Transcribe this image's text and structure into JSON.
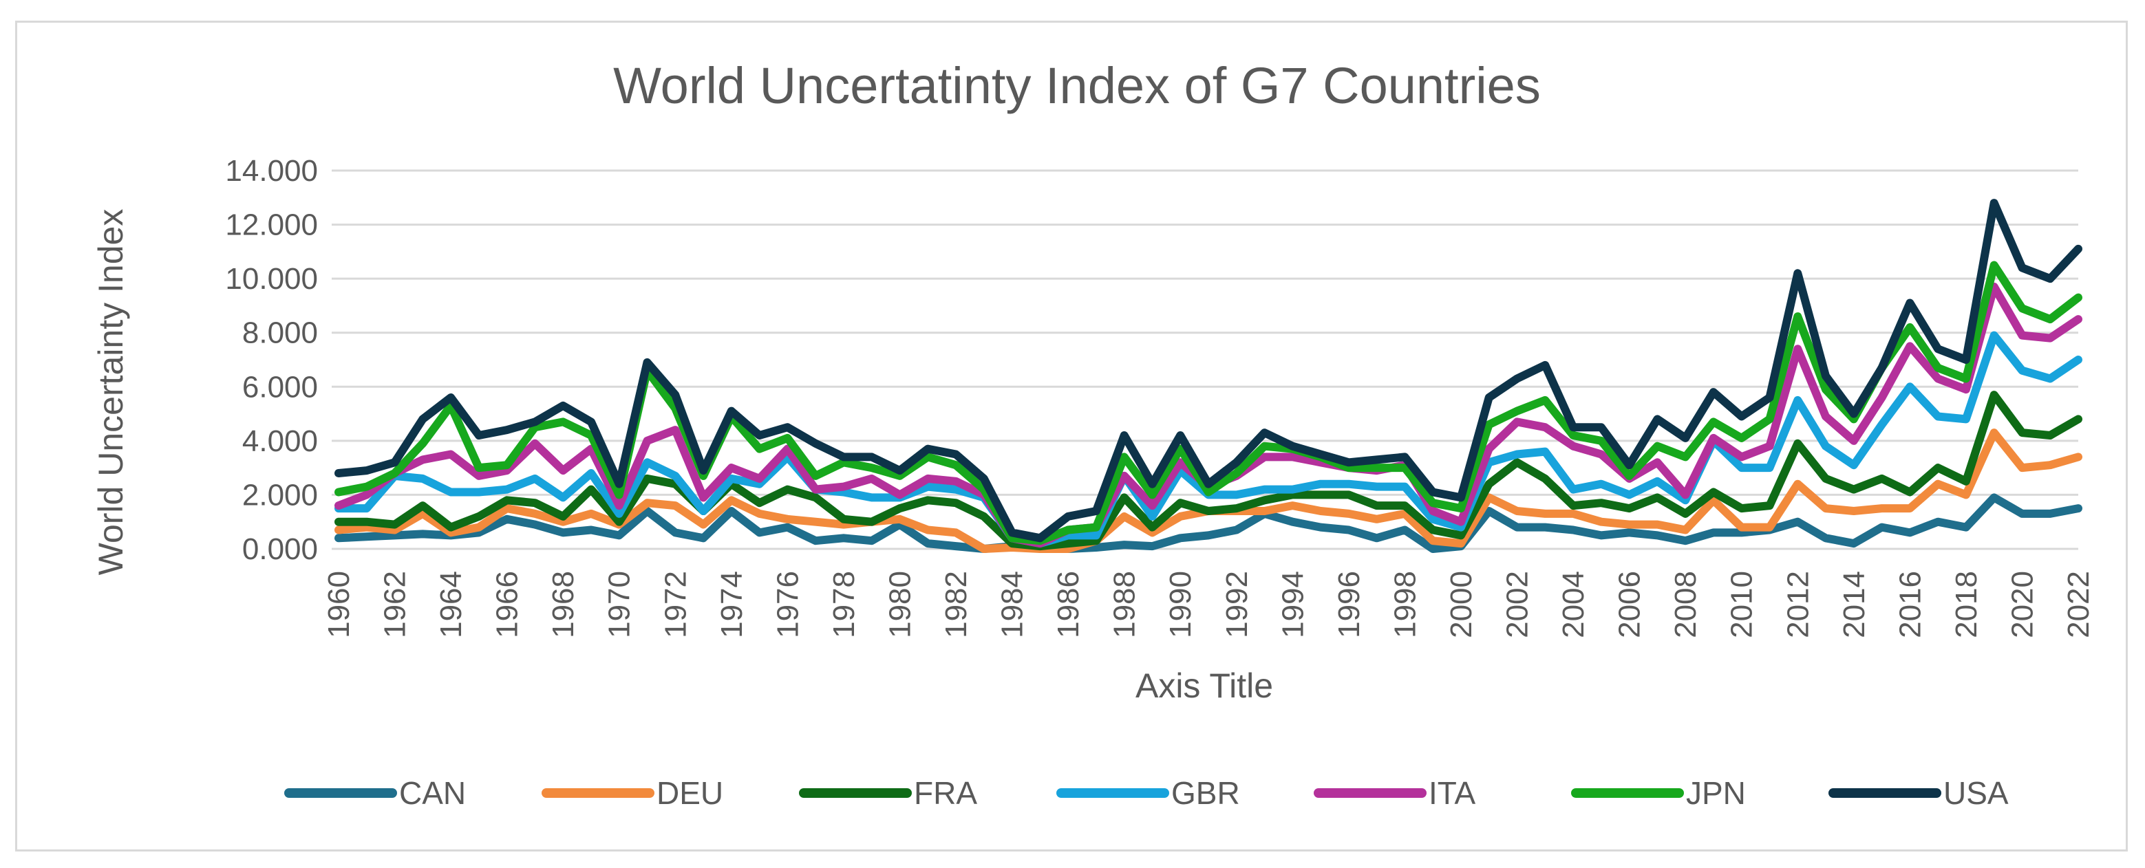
{
  "chart_data": {
    "type": "line",
    "title": "World Uncertatinty Index of G7 Countries",
    "xlabel": "Axis Title",
    "ylabel": "World Uncertainty Index",
    "ylim": [
      0,
      14
    ],
    "yticks": [
      "0.000",
      "2.000",
      "4.000",
      "6.000",
      "8.000",
      "10.000",
      "12.000",
      "14.000"
    ],
    "y_tick_values": [
      0,
      2,
      4,
      6,
      8,
      10,
      12,
      14
    ],
    "x_tick_labels": [
      "1960",
      "1962",
      "1964",
      "1966",
      "1968",
      "1970",
      "1972",
      "1974",
      "1976",
      "1978",
      "1980",
      "1982",
      "1984",
      "1986",
      "1988",
      "1990",
      "1992",
      "1994",
      "1996",
      "1998",
      "2000",
      "2002",
      "2004",
      "2006",
      "2008",
      "2010",
      "2012",
      "2014",
      "2016",
      "2018",
      "2020",
      "2022"
    ],
    "grid": true,
    "legend_position": "bottom",
    "x": [
      1960,
      1961,
      1962,
      1963,
      1964,
      1965,
      1966,
      1967,
      1968,
      1969,
      1970,
      1971,
      1972,
      1973,
      1974,
      1975,
      1976,
      1977,
      1978,
      1979,
      1980,
      1981,
      1982,
      1983,
      1984,
      1985,
      1986,
      1987,
      1988,
      1989,
      1990,
      1991,
      1992,
      1993,
      1994,
      1995,
      1996,
      1997,
      1998,
      1999,
      2000,
      2001,
      2002,
      2003,
      2004,
      2005,
      2006,
      2007,
      2008,
      2009,
      2010,
      2011,
      2012,
      2013,
      2014,
      2015,
      2016,
      2017,
      2018,
      2019,
      2020,
      2021,
      2022
    ],
    "series": [
      {
        "name": "CAN",
        "color": "#1f6e8c",
        "values": [
          0.4,
          0.45,
          0.5,
          0.55,
          0.5,
          0.6,
          1.1,
          0.9,
          0.6,
          0.7,
          0.5,
          1.4,
          0.6,
          0.4,
          1.4,
          0.6,
          0.8,
          0.3,
          0.4,
          0.3,
          0.9,
          0.2,
          0.1,
          0.0,
          0.1,
          0.05,
          0.0,
          0.05,
          0.15,
          0.1,
          0.4,
          0.5,
          0.7,
          1.3,
          1.0,
          0.8,
          0.7,
          0.4,
          0.7,
          0.0,
          0.1,
          1.4,
          0.8,
          0.8,
          0.7,
          0.5,
          0.6,
          0.5,
          0.3,
          0.6,
          0.6,
          0.7,
          1.0,
          0.4,
          0.2,
          0.8,
          0.6,
          1.0,
          0.8,
          1.9,
          1.3,
          1.3,
          1.5
        ]
      },
      {
        "name": "DEU",
        "color": "#f28a3c",
        "values": [
          0.7,
          0.8,
          0.7,
          1.3,
          0.6,
          0.8,
          1.5,
          1.3,
          1.0,
          1.3,
          0.9,
          1.7,
          1.6,
          0.9,
          1.8,
          1.3,
          1.1,
          1.0,
          0.9,
          1.0,
          1.1,
          0.7,
          0.6,
          0.0,
          0.05,
          0.0,
          0.0,
          0.3,
          1.2,
          0.6,
          1.2,
          1.4,
          1.4,
          1.4,
          1.6,
          1.4,
          1.3,
          1.1,
          1.3,
          0.3,
          0.2,
          1.9,
          1.4,
          1.3,
          1.3,
          1.0,
          0.9,
          0.9,
          0.7,
          1.8,
          0.8,
          0.8,
          2.4,
          1.5,
          1.4,
          1.5,
          1.5,
          2.4,
          2.0,
          4.3,
          3.0,
          3.1,
          3.4
        ]
      },
      {
        "name": "FRA",
        "color": "#0e6b16",
        "values": [
          1.0,
          1.0,
          0.9,
          1.6,
          0.8,
          1.2,
          1.8,
          1.7,
          1.2,
          2.2,
          1.0,
          2.6,
          2.4,
          1.4,
          2.4,
          1.7,
          2.2,
          1.9,
          1.1,
          1.0,
          1.5,
          1.8,
          1.7,
          1.2,
          0.2,
          0.1,
          0.2,
          0.3,
          1.9,
          0.8,
          1.7,
          1.4,
          1.5,
          1.8,
          2.0,
          2.0,
          2.0,
          1.6,
          1.6,
          0.7,
          0.5,
          2.4,
          3.2,
          2.6,
          1.6,
          1.7,
          1.5,
          1.9,
          1.3,
          2.1,
          1.5,
          1.6,
          3.9,
          2.6,
          2.2,
          2.6,
          2.1,
          3.0,
          2.5,
          5.7,
          4.3,
          4.2,
          4.8
        ]
      },
      {
        "name": "GBR",
        "color": "#18a3dc",
        "values": [
          1.5,
          1.5,
          2.7,
          2.6,
          2.1,
          2.1,
          2.2,
          2.6,
          1.9,
          2.8,
          1.3,
          3.2,
          2.7,
          1.4,
          2.6,
          2.4,
          3.4,
          2.2,
          2.1,
          1.9,
          1.9,
          2.3,
          2.2,
          1.9,
          0.4,
          0.2,
          0.5,
          0.5,
          2.7,
          1.2,
          2.9,
          2.0,
          2.0,
          2.2,
          2.2,
          2.4,
          2.4,
          2.3,
          2.3,
          1.1,
          0.8,
          3.2,
          3.5,
          3.6,
          2.2,
          2.4,
          2.0,
          2.5,
          1.8,
          4.0,
          3.0,
          3.0,
          5.5,
          3.8,
          3.1,
          4.6,
          6.0,
          4.9,
          4.8,
          7.9,
          6.6,
          6.3,
          7.0
        ]
      },
      {
        "name": "ITA",
        "color": "#b4319b",
        "values": [
          1.6,
          2.0,
          2.8,
          3.3,
          3.5,
          2.7,
          2.9,
          3.9,
          2.9,
          3.7,
          1.6,
          4.0,
          4.4,
          1.9,
          3.0,
          2.6,
          3.7,
          2.2,
          2.3,
          2.6,
          2.0,
          2.6,
          2.5,
          2.0,
          0.4,
          0.2,
          0.7,
          0.8,
          2.7,
          1.6,
          3.2,
          2.3,
          2.7,
          3.4,
          3.4,
          3.2,
          3.0,
          2.9,
          3.1,
          1.4,
          1.0,
          3.7,
          4.7,
          4.5,
          3.8,
          3.5,
          2.6,
          3.2,
          2.0,
          4.1,
          3.4,
          3.8,
          7.4,
          4.9,
          4.0,
          5.6,
          7.5,
          6.3,
          5.9,
          9.7,
          7.9,
          7.8,
          8.5
        ]
      },
      {
        "name": "JPN",
        "color": "#17a81d",
        "values": [
          2.1,
          2.3,
          2.8,
          3.9,
          5.3,
          3.0,
          3.1,
          4.5,
          4.7,
          4.2,
          2.0,
          6.6,
          5.2,
          2.7,
          4.9,
          3.7,
          4.1,
          2.7,
          3.2,
          3.0,
          2.7,
          3.4,
          3.1,
          2.2,
          0.4,
          0.3,
          0.7,
          0.8,
          3.4,
          2.0,
          3.7,
          2.1,
          2.8,
          3.8,
          3.7,
          3.4,
          3.0,
          3.0,
          3.0,
          1.7,
          1.5,
          4.6,
          5.1,
          5.5,
          4.2,
          4.0,
          2.7,
          3.8,
          3.4,
          4.7,
          4.1,
          4.8,
          8.6,
          5.9,
          4.8,
          6.7,
          8.2,
          6.7,
          6.3,
          10.5,
          8.9,
          8.5,
          9.3
        ]
      },
      {
        "name": "USA",
        "color": "#0d3349",
        "values": [
          2.8,
          2.9,
          3.2,
          4.8,
          5.6,
          4.2,
          4.4,
          4.7,
          5.3,
          4.7,
          2.4,
          6.9,
          5.7,
          2.9,
          5.1,
          4.2,
          4.5,
          3.9,
          3.4,
          3.4,
          2.9,
          3.7,
          3.5,
          2.6,
          0.6,
          0.4,
          1.2,
          1.4,
          4.2,
          2.4,
          4.2,
          2.4,
          3.2,
          4.3,
          3.8,
          3.5,
          3.2,
          3.3,
          3.4,
          2.1,
          1.9,
          5.6,
          6.3,
          6.8,
          4.5,
          4.5,
          3.1,
          4.8,
          4.1,
          5.8,
          4.9,
          5.6,
          10.2,
          6.4,
          5.0,
          6.7,
          9.1,
          7.4,
          7.0,
          12.8,
          10.4,
          10.0,
          11.1
        ]
      }
    ]
  }
}
